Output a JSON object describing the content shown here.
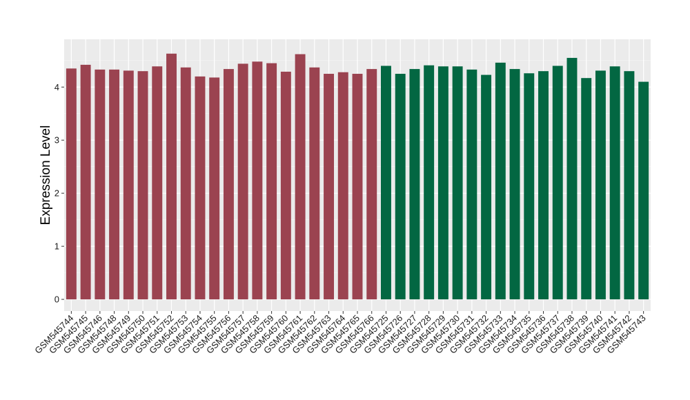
{
  "chart_data": {
    "type": "bar",
    "title": "",
    "xlabel": "",
    "ylabel": "Expression Level",
    "ylim": [
      -0.22,
      4.9
    ],
    "yticks": [
      0,
      1,
      2,
      3,
      4
    ],
    "grid": true,
    "background": "#ebebeb",
    "colors": {
      "group1": "#9b4350",
      "group2": "#036742"
    },
    "categories": [
      "GSM545744",
      "GSM545745",
      "GSM545746",
      "GSM545748",
      "GSM545749",
      "GSM545750",
      "GSM545751",
      "GSM545752",
      "GSM545753",
      "GSM545754",
      "GSM545755",
      "GSM545756",
      "GSM545757",
      "GSM545758",
      "GSM545759",
      "GSM545760",
      "GSM545761",
      "GSM545762",
      "GSM545763",
      "GSM545764",
      "GSM545765",
      "GSM545766",
      "GSM545725",
      "GSM545726",
      "GSM545727",
      "GSM545728",
      "GSM545729",
      "GSM545730",
      "GSM545731",
      "GSM545732",
      "GSM545733",
      "GSM545734",
      "GSM545735",
      "GSM545736",
      "GSM545737",
      "GSM545738",
      "GSM545739",
      "GSM545740",
      "GSM545741",
      "GSM545742",
      "GSM545743"
    ],
    "values": [
      4.35,
      4.42,
      4.33,
      4.33,
      4.31,
      4.3,
      4.39,
      4.63,
      4.37,
      4.2,
      4.18,
      4.34,
      4.44,
      4.48,
      4.45,
      4.29,
      4.62,
      4.37,
      4.25,
      4.28,
      4.25,
      4.34,
      4.4,
      4.25,
      4.34,
      4.41,
      4.39,
      4.39,
      4.33,
      4.23,
      4.46,
      4.34,
      4.26,
      4.3,
      4.4,
      4.55,
      4.17,
      4.31,
      4.39,
      4.3,
      4.1
    ],
    "groups": [
      "group1",
      "group1",
      "group1",
      "group1",
      "group1",
      "group1",
      "group1",
      "group1",
      "group1",
      "group1",
      "group1",
      "group1",
      "group1",
      "group1",
      "group1",
      "group1",
      "group1",
      "group1",
      "group1",
      "group1",
      "group1",
      "group1",
      "group2",
      "group2",
      "group2",
      "group2",
      "group2",
      "group2",
      "group2",
      "group2",
      "group2",
      "group2",
      "group2",
      "group2",
      "group2",
      "group2",
      "group2",
      "group2",
      "group2",
      "group2",
      "group2"
    ]
  }
}
